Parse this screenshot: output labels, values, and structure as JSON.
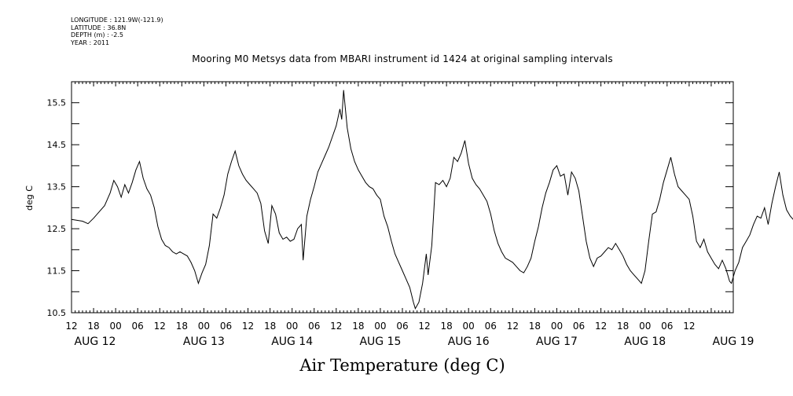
{
  "metadata": {
    "longitude": "LONGITUDE : 121.9W(-121.9)",
    "latitude": "LATITUDE : 36.8N",
    "depth": "DEPTH (m) : -2.5",
    "year": "YEAR : 2011"
  },
  "chart_data": {
    "type": "line",
    "title": "Mooring M0 Metsys data from MBARI instrument id 1424 at original sampling intervals",
    "xlabel": "Air Temperature (deg C)",
    "ylabel": "deg C",
    "ylim": [
      10.5,
      16.0
    ],
    "yticks": [
      10.5,
      11.5,
      12.5,
      13.5,
      14.5,
      15.5
    ],
    "ytick_labels": [
      "10.5",
      "11.5",
      "12.5",
      "13.5",
      "14.5",
      "15.5"
    ],
    "xlim_hours": [
      12,
      192
    ],
    "x_hour_ticks": [
      12,
      18,
      0,
      6,
      12,
      18,
      0,
      6,
      12,
      18,
      0,
      6,
      12,
      18,
      0,
      6,
      12,
      18,
      0,
      6,
      12,
      18,
      0,
      6,
      12,
      18,
      0,
      6,
      12
    ],
    "x_hour_tick_labels": [
      "12",
      "18",
      "00",
      "06",
      "12",
      "18",
      "00",
      "06",
      "12",
      "18",
      "00",
      "06",
      "12",
      "18",
      "00",
      "06",
      "12",
      "18",
      "00",
      "06",
      "12",
      "18",
      "00",
      "06",
      "12",
      "18",
      "00",
      "06",
      "12"
    ],
    "x_date_labels": [
      "AUG 12",
      "AUG 13",
      "AUG 14",
      "AUG 15",
      "AUG 16",
      "AUG 17",
      "AUG 18",
      "AUG 19"
    ],
    "grid": false,
    "series": [
      {
        "color": "#000000",
        "points": [
          [
            12.0,
            12.72
          ],
          [
            13.5,
            12.7
          ],
          [
            15.0,
            12.68
          ],
          [
            16.5,
            12.62
          ],
          [
            18.0,
            12.75
          ],
          [
            19.5,
            12.9
          ],
          [
            21.0,
            13.05
          ],
          [
            22.5,
            13.35
          ],
          [
            23.5,
            13.65
          ],
          [
            24.5,
            13.5
          ],
          [
            25.5,
            13.25
          ],
          [
            26.5,
            13.55
          ],
          [
            27.5,
            13.35
          ],
          [
            28.5,
            13.6
          ],
          [
            29.5,
            13.9
          ],
          [
            30.5,
            14.1
          ],
          [
            31.5,
            13.7
          ],
          [
            32.5,
            13.45
          ],
          [
            33.5,
            13.3
          ],
          [
            34.5,
            13.0
          ],
          [
            35.5,
            12.55
          ],
          [
            36.5,
            12.25
          ],
          [
            37.5,
            12.1
          ],
          [
            38.5,
            12.05
          ],
          [
            39.5,
            11.95
          ],
          [
            40.5,
            11.9
          ],
          [
            41.5,
            11.95
          ],
          [
            42.5,
            11.9
          ],
          [
            43.5,
            11.85
          ],
          [
            44.5,
            11.7
          ],
          [
            45.5,
            11.5
          ],
          [
            46.5,
            11.2
          ],
          [
            47.5,
            11.45
          ],
          [
            48.5,
            11.65
          ],
          [
            49.5,
            12.1
          ],
          [
            50.5,
            12.85
          ],
          [
            51.5,
            12.75
          ],
          [
            52.5,
            13.0
          ],
          [
            53.5,
            13.3
          ],
          [
            54.5,
            13.8
          ],
          [
            55.5,
            14.1
          ],
          [
            56.5,
            14.35
          ],
          [
            57.5,
            14.0
          ],
          [
            58.5,
            13.8
          ],
          [
            59.5,
            13.65
          ],
          [
            60.5,
            13.55
          ],
          [
            61.5,
            13.45
          ],
          [
            62.5,
            13.35
          ],
          [
            63.5,
            13.1
          ],
          [
            64.5,
            12.45
          ],
          [
            65.5,
            12.15
          ],
          [
            66.5,
            13.05
          ],
          [
            67.5,
            12.85
          ],
          [
            68.5,
            12.4
          ],
          [
            69.5,
            12.25
          ],
          [
            70.5,
            12.3
          ],
          [
            71.5,
            12.2
          ],
          [
            72.5,
            12.25
          ],
          [
            73.5,
            12.5
          ],
          [
            74.5,
            12.6
          ],
          [
            75.0,
            11.75
          ],
          [
            76.0,
            12.8
          ],
          [
            77.0,
            13.2
          ],
          [
            78.0,
            13.5
          ],
          [
            79.0,
            13.85
          ],
          [
            80.0,
            14.05
          ],
          [
            81.0,
            14.25
          ],
          [
            82.0,
            14.45
          ],
          [
            83.0,
            14.7
          ],
          [
            84.0,
            14.95
          ],
          [
            85.0,
            15.35
          ],
          [
            85.5,
            15.1
          ],
          [
            86.0,
            15.8
          ],
          [
            87.0,
            14.9
          ],
          [
            88.0,
            14.4
          ],
          [
            89.0,
            14.1
          ],
          [
            90.0,
            13.9
          ],
          [
            91.0,
            13.75
          ],
          [
            92.0,
            13.6
          ],
          [
            93.0,
            13.5
          ],
          [
            94.0,
            13.45
          ],
          [
            95.0,
            13.3
          ],
          [
            96.0,
            13.2
          ],
          [
            97.0,
            12.8
          ],
          [
            98.0,
            12.55
          ],
          [
            99.0,
            12.2
          ],
          [
            100.0,
            11.9
          ],
          [
            101.0,
            11.7
          ],
          [
            102.0,
            11.5
          ],
          [
            103.0,
            11.3
          ],
          [
            104.0,
            11.1
          ],
          [
            105.0,
            10.75
          ],
          [
            105.5,
            10.6
          ],
          [
            106.5,
            10.75
          ],
          [
            107.5,
            11.2
          ],
          [
            108.5,
            11.9
          ],
          [
            109.0,
            11.4
          ],
          [
            110.0,
            12.1
          ],
          [
            111.0,
            13.6
          ],
          [
            112.0,
            13.55
          ],
          [
            113.0,
            13.65
          ],
          [
            114.0,
            13.5
          ],
          [
            115.0,
            13.7
          ],
          [
            116.0,
            14.2
          ],
          [
            117.0,
            14.1
          ],
          [
            118.0,
            14.3
          ],
          [
            119.0,
            14.6
          ],
          [
            120.0,
            14.05
          ],
          [
            121.0,
            13.7
          ],
          [
            122.0,
            13.55
          ],
          [
            123.0,
            13.45
          ],
          [
            124.0,
            13.3
          ],
          [
            125.0,
            13.15
          ],
          [
            126.0,
            12.85
          ],
          [
            127.0,
            12.45
          ],
          [
            128.0,
            12.15
          ],
          [
            129.0,
            11.95
          ],
          [
            130.0,
            11.8
          ],
          [
            131.0,
            11.75
          ],
          [
            132.0,
            11.7
          ],
          [
            133.0,
            11.6
          ],
          [
            134.0,
            11.5
          ],
          [
            135.0,
            11.45
          ],
          [
            136.0,
            11.6
          ],
          [
            137.0,
            11.8
          ],
          [
            138.0,
            12.2
          ],
          [
            139.0,
            12.55
          ],
          [
            140.0,
            13.0
          ],
          [
            141.0,
            13.35
          ],
          [
            142.0,
            13.6
          ],
          [
            143.0,
            13.9
          ],
          [
            144.0,
            14.0
          ],
          [
            145.0,
            13.75
          ],
          [
            146.0,
            13.8
          ],
          [
            147.0,
            13.3
          ],
          [
            148.0,
            13.85
          ],
          [
            149.0,
            13.7
          ],
          [
            150.0,
            13.4
          ],
          [
            151.0,
            12.8
          ],
          [
            152.0,
            12.2
          ],
          [
            153.0,
            11.8
          ],
          [
            154.0,
            11.6
          ],
          [
            155.0,
            11.8
          ],
          [
            156.0,
            11.85
          ],
          [
            157.0,
            11.95
          ],
          [
            158.0,
            12.05
          ],
          [
            159.0,
            12.0
          ],
          [
            160.0,
            12.15
          ],
          [
            161.0,
            12.0
          ],
          [
            162.0,
            11.85
          ],
          [
            163.0,
            11.65
          ],
          [
            164.0,
            11.5
          ],
          [
            165.0,
            11.4
          ],
          [
            166.0,
            11.3
          ],
          [
            167.0,
            11.2
          ],
          [
            168.0,
            11.5
          ],
          [
            169.0,
            12.2
          ],
          [
            170.0,
            12.85
          ],
          [
            171.0,
            12.9
          ],
          [
            172.0,
            13.2
          ],
          [
            173.0,
            13.6
          ],
          [
            174.0,
            13.9
          ],
          [
            175.0,
            14.2
          ],
          [
            176.0,
            13.8
          ],
          [
            177.0,
            13.5
          ],
          [
            178.0,
            13.4
          ],
          [
            179.0,
            13.3
          ],
          [
            180.0,
            13.2
          ],
          [
            181.0,
            12.8
          ],
          [
            182.0,
            12.2
          ],
          [
            183.0,
            12.05
          ],
          [
            184.0,
            12.25
          ],
          [
            185.0,
            11.95
          ],
          [
            186.0,
            11.8
          ],
          [
            187.0,
            11.65
          ],
          [
            188.0,
            11.55
          ],
          [
            189.0,
            11.75
          ],
          [
            190.0,
            11.55
          ],
          [
            191.0,
            11.25
          ],
          [
            191.5,
            11.2
          ],
          [
            192.5,
            11.5
          ],
          [
            193.5,
            11.7
          ],
          [
            194.5,
            12.05
          ],
          [
            195.5,
            12.2
          ],
          [
            196.5,
            12.35
          ],
          [
            197.5,
            12.6
          ],
          [
            198.5,
            12.8
          ],
          [
            199.5,
            12.75
          ],
          [
            200.5,
            13.0
          ],
          [
            201.5,
            12.6
          ],
          [
            202.5,
            13.1
          ],
          [
            203.5,
            13.5
          ],
          [
            204.5,
            13.85
          ],
          [
            205.5,
            13.3
          ],
          [
            206.5,
            12.95
          ],
          [
            207.5,
            12.8
          ],
          [
            208.5,
            12.7
          ],
          [
            209.5,
            12.5
          ],
          [
            210.5,
            12.1
          ],
          [
            211.5,
            12.2
          ],
          [
            212.5,
            12.3
          ],
          [
            213.5,
            12.4
          ],
          [
            214.5,
            12.15
          ],
          [
            215.5,
            12.0
          ],
          [
            216.5,
            12.1
          ],
          [
            217.5,
            12.2
          ],
          [
            218.0,
            12.28
          ]
        ]
      }
    ]
  }
}
